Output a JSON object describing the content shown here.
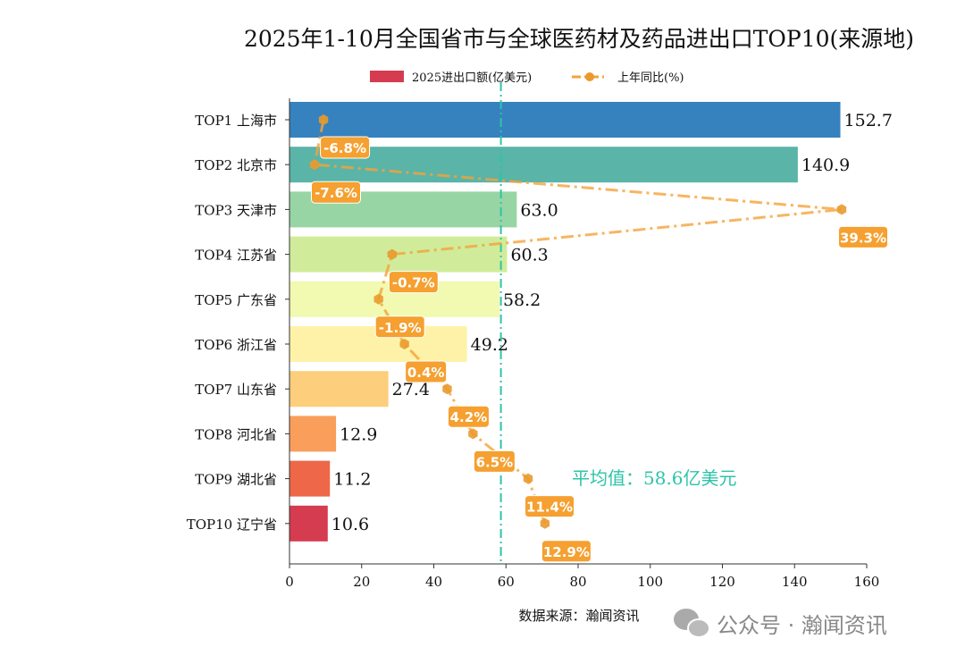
{
  "chart_data": {
    "type": "bar",
    "orientation": "horizontal",
    "title": "2025年1-10月全国省市与全球医药材及药品进出口TOP10(来源地)",
    "categories": [
      "TOP1 上海市",
      "TOP2 北京市",
      "TOP3 天津市",
      "TOP4 江苏省",
      "TOP5 广东省",
      "TOP6 浙江省",
      "TOP7 山东省",
      "TOP8 河北省",
      "TOP9 湖北省",
      "TOP10 辽宁省"
    ],
    "series": [
      {
        "name": "2025进出口额(亿美元)",
        "type": "bar",
        "values": [
          152.7,
          140.9,
          63.0,
          60.3,
          58.2,
          49.2,
          27.4,
          12.9,
          11.2,
          10.6
        ],
        "labels": [
          "152.7",
          "140.9",
          "63.0",
          "60.3",
          "58.2",
          "49.2",
          "27.4",
          "12.9",
          "11.2",
          "10.6"
        ],
        "colors": [
          "#3682be",
          "#5ab4a8",
          "#98d5a4",
          "#d0ec9b",
          "#f2f9b0",
          "#fef2a8",
          "#fdce7c",
          "#f99e5b",
          "#ed6748",
          "#d53c50"
        ]
      },
      {
        "name": "上年同比(%)",
        "type": "line",
        "style": "dash-dot",
        "marker": "hexagon",
        "color": "#f5a33a",
        "values": [
          -6.8,
          -7.6,
          39.3,
          -0.7,
          -1.9,
          0.4,
          4.2,
          6.5,
          11.4,
          12.9
        ],
        "labels": [
          "-6.8%",
          "-7.6%",
          "39.3%",
          "-0.7%",
          "-1.9%",
          "0.4%",
          "4.2%",
          "6.5%",
          "11.4%",
          "12.9%"
        ]
      }
    ],
    "xlim": [
      0,
      160
    ],
    "xticks": [
      "0",
      "20",
      "40",
      "60",
      "80",
      "100",
      "120",
      "140",
      "160"
    ],
    "grid": false,
    "legend_position": "top-center",
    "average": {
      "value": 58.6,
      "label": "平均值：58.6亿美元",
      "color": "#2ec4a8"
    },
    "source_note": "数据来源：瀚闻资讯"
  },
  "watermark": "公众号 · 瀚闻资讯"
}
